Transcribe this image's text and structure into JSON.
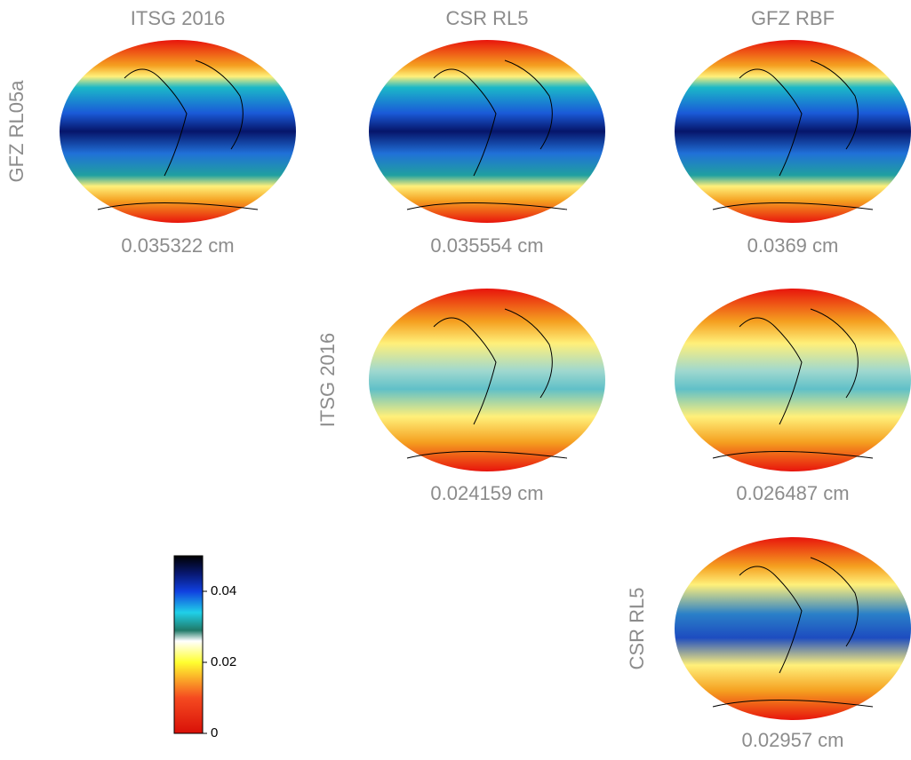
{
  "columns": [
    "ITSG 2016",
    "CSR RL5",
    "GFZ RBF"
  ],
  "rows": [
    {
      "label": "GFZ RL05a",
      "captions": [
        "0.035322 cm",
        "0.035554 cm",
        "0.0369 cm"
      ]
    },
    {
      "label": "ITSG 2016",
      "captions": [
        "0.024159 cm",
        "0.026487 cm"
      ]
    },
    {
      "label": "CSR RL5",
      "captions": [
        "0.02957 cm"
      ]
    }
  ],
  "colorbar": {
    "lim": [
      0,
      0.05
    ],
    "ticks": [
      0,
      0.02,
      0.04
    ]
  }
}
